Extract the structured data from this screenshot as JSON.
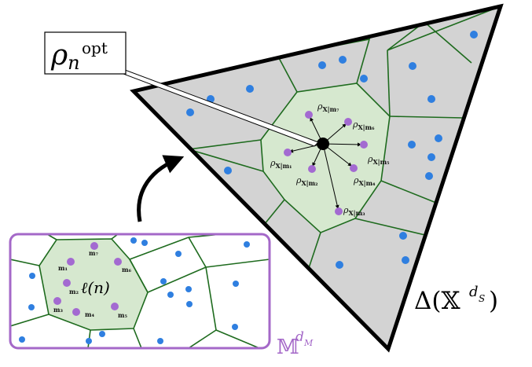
{
  "colors": {
    "simplex_fill": "#d3d3d3",
    "simplex_stroke": "#000000",
    "voronoi_edge": "#1e6b1e",
    "highlight_cell": "#d6e8cf",
    "blue_point": "#2f7fe0",
    "purple_point": "#a36ad1",
    "manifold_border": "#a468c8",
    "arrow": "#000000"
  },
  "callout": {
    "symbol": "ρ",
    "subscript": "n",
    "superscript": "opt"
  },
  "simplex_label": {
    "prefix": "Δ(",
    "base": "𝕏",
    "superscript": "d",
    "sub_of_superscript": "S",
    "suffix": ")"
  },
  "manifold_label": {
    "base": "𝕄",
    "superscript": "d",
    "sub_of_superscript": "M"
  },
  "cell_label": "ℓ(n)",
  "rho_labels": [
    {
      "id": "m7",
      "base": "ρ",
      "sub": "X|m₇"
    },
    {
      "id": "m6",
      "base": "ρ",
      "sub": "X|m₆"
    },
    {
      "id": "m5",
      "base": "ρ",
      "sub": "X|m₅"
    },
    {
      "id": "m1",
      "base": "ρ",
      "sub": "X|m₁"
    },
    {
      "id": "m2",
      "base": "ρ",
      "sub": "X|m₂"
    },
    {
      "id": "m4",
      "base": "ρ",
      "sub": "X|m₄"
    },
    {
      "id": "m3",
      "base": "ρ",
      "sub": "X|m₃"
    }
  ],
  "m_labels": [
    "m₁",
    "m₂",
    "m₃",
    "m₄",
    "m₅",
    "m₆",
    "m₇"
  ]
}
